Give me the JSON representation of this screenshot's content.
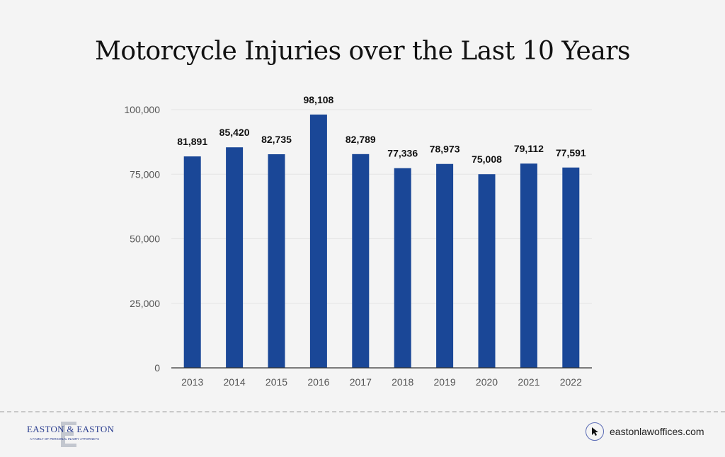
{
  "chart_data": {
    "type": "bar",
    "title": "Motorcycle Injuries over the Last 10 Years",
    "categories": [
      "2013",
      "2014",
      "2015",
      "2016",
      "2017",
      "2018",
      "2019",
      "2020",
      "2021",
      "2022"
    ],
    "values": [
      81891,
      85420,
      82735,
      98108,
      82789,
      77336,
      78973,
      75008,
      79112,
      77591
    ],
    "data_labels": [
      "81,891",
      "85,420",
      "82,735",
      "98,108",
      "82,789",
      "77,336",
      "78,973",
      "75,008",
      "79,112",
      "77,591"
    ],
    "yticks": [
      0,
      25000,
      50000,
      75000,
      100000
    ],
    "ytick_labels": [
      "0",
      "25,000",
      "50,000",
      "75,000",
      "100,000"
    ],
    "ylim": [
      0,
      100000
    ],
    "xlabel": "",
    "ylabel": "",
    "grid": true,
    "bar_color": "#1a4797"
  },
  "footer": {
    "logo_text": "EASTON & EASTON",
    "logo_tagline": "A FAMILY OF PERSONAL INJURY ATTORNEYS",
    "website": "eastonlawoffices.com",
    "website_icon": "cursor-icon"
  }
}
